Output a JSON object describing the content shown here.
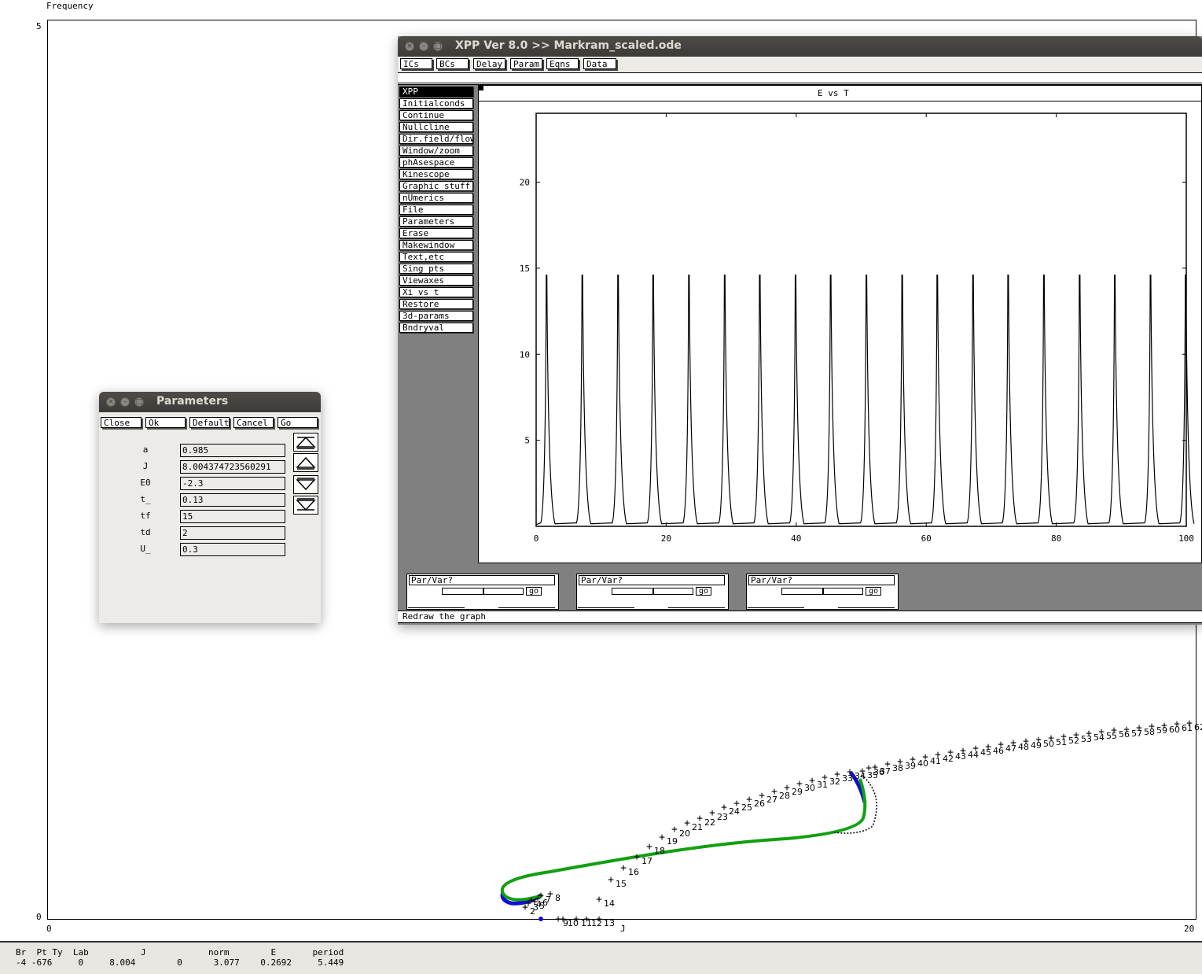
{
  "auto": {
    "y_axis_title": "Frequency",
    "y_max": "5",
    "y_min": "0",
    "x_min": "0",
    "x_max": "20",
    "x_axis_label": "J",
    "status_header": "Br  Pt Ty  Lab          J            norm        E       period",
    "status_values": "-4 -676     0     8.004        0      3.077    0.2692     5.449",
    "point_labels": [
      "2",
      "3",
      "4",
      "5",
      "6",
      "7",
      "8",
      "9",
      "10",
      "11",
      "12",
      "13",
      "14",
      "15",
      "16",
      "17",
      "18",
      "19",
      "20",
      "21",
      "22",
      "23",
      "24",
      "25",
      "26",
      "27",
      "28",
      "29",
      "30",
      "31",
      "32",
      "33",
      "34",
      "35",
      "36",
      "37",
      "38",
      "39",
      "40",
      "41",
      "42",
      "43",
      "44",
      "45",
      "46",
      "47",
      "48",
      "49",
      "50",
      "51",
      "52",
      "53",
      "54",
      "55",
      "56",
      "57",
      "58",
      "59",
      "60",
      "61",
      "62"
    ]
  },
  "parameters_window": {
    "title": "Parameters",
    "buttons": {
      "close": "Close",
      "ok": "Ok",
      "default": "Default",
      "cancel": "Cancel",
      "go": "Go"
    },
    "params": [
      {
        "name": "a",
        "value": "0.985"
      },
      {
        "name": "J",
        "value": "8.004374723560291"
      },
      {
        "name": "E0",
        "value": "-2.3"
      },
      {
        "name": "t_",
        "value": "0.13"
      },
      {
        "name": "tf",
        "value": "15"
      },
      {
        "name": "td",
        "value": "2"
      },
      {
        "name": "U_",
        "value": "0.3"
      }
    ]
  },
  "xpp_window": {
    "title": "XPP Ver 8.0 >> Markram_scaled.ode",
    "top_buttons": [
      "ICs",
      "BCs",
      "Delay",
      "Param",
      "Eqns",
      "Data"
    ],
    "menu": [
      "XPP",
      "Initialconds",
      "Continue",
      "Nullcline",
      "Dir.field/flow",
      "Window/zoom",
      "phAsespace",
      "Kinescope",
      "Graphic stuff",
      "nUmerics",
      "File",
      "Parameters",
      "Erase",
      "Makewindow",
      "Text,etc",
      "Sing pts",
      "Viewaxes",
      "Xi vs t",
      "Restore",
      "3d-params",
      "Bndryval"
    ],
    "graph_title": "E vs T",
    "status": "Redraw the graph",
    "sliders": [
      {
        "label": "Par/Var?",
        "go": "go"
      },
      {
        "label": "Par/Var?",
        "go": "go"
      },
      {
        "label": "Par/Var?",
        "go": "go"
      }
    ]
  },
  "chart_data": {
    "type": "line",
    "title": "E vs T",
    "xlabel": "",
    "ylabel": "",
    "xlim": [
      0,
      100
    ],
    "ylim": [
      0,
      24
    ],
    "x_ticks": [
      0,
      20,
      40,
      60,
      80,
      100
    ],
    "y_ticks": [
      5,
      10,
      15,
      20
    ],
    "series": [
      {
        "spike_times": [
          1.6,
          7.1,
          12.6,
          18.0,
          23.5,
          29.0,
          34.4,
          39.9,
          45.3,
          50.8,
          56.3,
          61.7,
          67.2,
          72.6,
          78.1,
          83.6,
          89.0,
          94.5,
          99.9
        ],
        "peak": 14.6,
        "baseline": 0.1
      }
    ]
  }
}
